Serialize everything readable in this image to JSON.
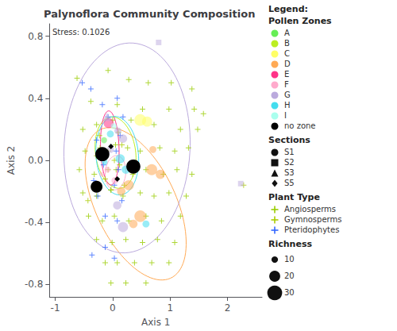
{
  "chart_data": {
    "type": "scatter",
    "title": "Palynoflora Community Composition",
    "xlabel": "Axis 1",
    "ylabel": "Axis 2",
    "annotation": "Stress: 0.1026",
    "xlim": [
      -1.1,
      2.6
    ],
    "ylim": [
      -0.88,
      0.88
    ],
    "xticks": [
      -1,
      0,
      1,
      2
    ],
    "yticks": [
      -0.8,
      -0.4,
      {
        "value": 0.0,
        "label": "0.0"
      },
      0.4,
      0.8
    ],
    "grid": false,
    "legend_title": "Legend:",
    "zone_legend_title": "Pollen Zones",
    "section_legend_title": "Sections",
    "plant_legend_title": "Plant Type",
    "richness_legend_title": "Richness",
    "richness_legend": [
      10,
      20,
      30
    ],
    "pollen_zones": [
      {
        "name": "A",
        "color": "#66ee55"
      },
      {
        "name": "B",
        "color": "#bbee22"
      },
      {
        "name": "C",
        "color": "#ffff66"
      },
      {
        "name": "D",
        "color": "#ffaa55"
      },
      {
        "name": "E",
        "color": "#ff3388"
      },
      {
        "name": "F",
        "color": "#ffaacc"
      },
      {
        "name": "G",
        "color": "#bbaadd"
      },
      {
        "name": "H",
        "color": "#44ddee"
      },
      {
        "name": "I",
        "color": "#aaffee"
      },
      {
        "name": "no zone",
        "color": "#000000"
      }
    ],
    "ellipses": [
      {
        "zone": "B",
        "cx": 0.05,
        "cy": 0.05,
        "width": 0.72,
        "height": 0.45,
        "angle": -10
      },
      {
        "zone": "D",
        "cx": 0.4,
        "cy": -0.28,
        "width": 1.85,
        "height": 0.8,
        "angle": -20
      },
      {
        "zone": "E",
        "cx": -0.05,
        "cy": 0.08,
        "width": 0.32,
        "height": 0.48,
        "angle": 8
      },
      {
        "zone": "F",
        "cx": 0.05,
        "cy": -0.08,
        "width": 0.36,
        "height": 0.22,
        "angle": 5
      },
      {
        "zone": "G",
        "cx": 0.25,
        "cy": 0.08,
        "width": 2.2,
        "height": 1.35,
        "angle": 3
      },
      {
        "zone": "H",
        "cx": 0.08,
        "cy": 0.03,
        "width": 0.75,
        "height": 0.5,
        "angle": -8
      }
    ],
    "plant_types": [
      {
        "name": "Angiosperms",
        "marker": "plus",
        "color": "#99cc00",
        "values": [
          [
            -0.62,
            0.53
          ],
          [
            -0.08,
            0.58
          ],
          [
            0.28,
            0.52
          ],
          [
            0.62,
            0.5
          ],
          [
            1.02,
            0.5
          ],
          [
            1.38,
            0.46
          ],
          [
            -0.38,
            0.38
          ],
          [
            0.08,
            0.36
          ],
          [
            0.52,
            0.33
          ],
          [
            0.98,
            0.33
          ],
          [
            1.42,
            0.33
          ],
          [
            1.58,
            0.3
          ],
          [
            -0.52,
            0.2
          ],
          [
            -0.28,
            0.23
          ],
          [
            0.0,
            0.26
          ],
          [
            0.32,
            0.26
          ],
          [
            0.72,
            0.23
          ],
          [
            1.18,
            0.2
          ],
          [
            1.48,
            0.2
          ],
          [
            -0.48,
            0.06
          ],
          [
            -0.22,
            0.08
          ],
          [
            0.05,
            0.1
          ],
          [
            0.26,
            0.08
          ],
          [
            0.48,
            0.06
          ],
          [
            0.82,
            0.08
          ],
          [
            1.08,
            0.06
          ],
          [
            1.32,
            0.08
          ],
          [
            -0.58,
            -0.06
          ],
          [
            -0.32,
            -0.09
          ],
          [
            -0.08,
            -0.06
          ],
          [
            0.12,
            -0.03
          ],
          [
            0.35,
            -0.09
          ],
          [
            0.58,
            -0.06
          ],
          [
            0.88,
            -0.09
          ],
          [
            1.12,
            -0.06
          ],
          [
            1.38,
            -0.09
          ],
          [
            -0.52,
            -0.21
          ],
          [
            -0.28,
            -0.23
          ],
          [
            -0.03,
            -0.19
          ],
          [
            0.18,
            -0.23
          ],
          [
            0.48,
            -0.21
          ],
          [
            0.72,
            -0.23
          ],
          [
            0.98,
            -0.21
          ],
          [
            1.28,
            -0.23
          ],
          [
            -0.42,
            -0.36
          ],
          [
            -0.18,
            -0.39
          ],
          [
            0.03,
            -0.36
          ],
          [
            0.28,
            -0.39
          ],
          [
            0.58,
            -0.36
          ],
          [
            0.85,
            -0.39
          ],
          [
            1.18,
            -0.36
          ],
          [
            -0.28,
            -0.51
          ],
          [
            -0.01,
            -0.53
          ],
          [
            0.23,
            -0.51
          ],
          [
            0.52,
            -0.53
          ],
          [
            0.78,
            -0.51
          ],
          [
            1.08,
            -0.53
          ],
          [
            -0.13,
            -0.66
          ],
          [
            0.08,
            -0.66
          ],
          [
            0.38,
            -0.66
          ],
          [
            0.68,
            -0.66
          ],
          [
            0.98,
            -0.66
          ],
          [
            -0.03,
            -0.79
          ],
          [
            0.23,
            -0.79
          ],
          [
            0.58,
            -0.79
          ]
        ]
      },
      {
        "name": "Gymnosperms",
        "marker": "plus",
        "color": "#aacc00",
        "values": [
          [
            -0.28,
            0.03
          ],
          [
            -0.08,
            0.06
          ],
          [
            0.03,
            0.0
          ],
          [
            0.16,
            0.1
          ],
          [
            -0.13,
            -0.12
          ],
          [
            0.06,
            -0.06
          ],
          [
            -0.23,
            0.16
          ],
          [
            0.1,
            0.18
          ],
          [
            -0.03,
            -0.19
          ],
          [
            0.2,
            -0.16
          ],
          [
            2.28,
            -0.16
          ],
          [
            -0.43,
            -0.26
          ]
        ]
      },
      {
        "name": "Pteridophytes",
        "marker": "plus",
        "color": "#3366ff",
        "values": [
          [
            -0.18,
            0.36
          ],
          [
            0.08,
            0.4
          ],
          [
            -0.08,
            0.28
          ],
          [
            0.18,
            0.28
          ],
          [
            -0.28,
            0.13
          ],
          [
            0.13,
            0.16
          ],
          [
            -0.23,
            0.03
          ],
          [
            0.06,
            0.06
          ],
          [
            -0.16,
            -0.03
          ],
          [
            0.1,
            -0.06
          ],
          [
            -0.33,
            -0.13
          ],
          [
            0.03,
            -0.16
          ],
          [
            -0.26,
            -0.23
          ],
          [
            0.16,
            -0.26
          ],
          [
            -0.13,
            -0.36
          ],
          [
            0.08,
            -0.39
          ],
          [
            -0.38,
            0.46
          ],
          [
            -0.53,
            0.5
          ],
          [
            -0.13,
            -0.56
          ],
          [
            -0.36,
            -0.61
          ],
          [
            0.03,
            -0.63
          ]
        ]
      }
    ],
    "zone_circles": {
      "marker": "circle",
      "values": [
        [
          -0.07,
          0.24
        ],
        [
          0.48,
          0.26
        ],
        [
          0.6,
          0.25
        ],
        [
          0.09,
          0.19
        ],
        [
          0.18,
          0.14
        ],
        [
          -0.04,
          0.07
        ],
        [
          0.13,
          0.01
        ],
        [
          0.23,
          -0.06
        ],
        [
          -0.09,
          -0.06
        ],
        [
          0.04,
          -0.13
        ],
        [
          -0.19,
          -0.09
        ],
        [
          0.28,
          -0.16
        ],
        [
          0.68,
          -0.06
        ],
        [
          0.83,
          -0.09
        ],
        [
          0.48,
          -0.36
        ],
        [
          0.36,
          -0.41
        ],
        [
          0.58,
          -0.41
        ],
        [
          0.18,
          -0.43
        ],
        [
          -0.04,
          0.17
        ],
        [
          0.08,
          -0.29
        ],
        [
          -0.14,
          -0.01
        ],
        [
          0.7,
          0.07
        ],
        [
          -0.15,
          0.13
        ],
        [
          -0.22,
          0.05
        ],
        [
          0.02,
          0.22
        ],
        [
          0.15,
          -0.2
        ]
      ],
      "zones": [
        "E",
        "C",
        "C",
        "G",
        "G",
        "G",
        "H",
        "H",
        "F",
        "F",
        "F",
        "D",
        "D",
        "D",
        "D",
        "D",
        "H",
        "G",
        "H",
        "G",
        "H",
        "D",
        "A",
        "B",
        "I",
        "D"
      ],
      "richness": [
        18,
        22,
        18,
        11,
        14,
        11,
        16,
        14,
        9,
        11,
        7,
        18,
        20,
        16,
        22,
        14,
        11,
        18,
        11,
        14,
        9,
        11,
        9,
        11,
        9,
        14
      ]
    },
    "sections": [
      {
        "name": "S1",
        "marker": "circle",
        "color": "#000000",
        "values": [
          [
            -0.18,
            0.04
          ],
          [
            -0.28,
            -0.17
          ],
          [
            0.36,
            -0.04
          ]
        ],
        "richness": [
          28,
          22,
          28
        ]
      },
      {
        "name": "S2",
        "marker": "square",
        "values": [
          [
            0.8,
            0.76
          ],
          [
            2.23,
            -0.15
          ]
        ],
        "zones": [
          "G",
          "G"
        ],
        "richness": [
          8,
          8
        ]
      },
      {
        "name": "S3",
        "marker": "triangle",
        "values": [
          [
            -0.1,
            0.28
          ]
        ],
        "zones": [
          "G"
        ],
        "richness": [
          14
        ]
      },
      {
        "name": "S5",
        "marker": "diamond",
        "color": "#000000",
        "values": [
          [
            0.08,
            -0.12
          ],
          [
            -0.03,
            0.09
          ]
        ],
        "richness": [
          8,
          8
        ]
      }
    ]
  }
}
